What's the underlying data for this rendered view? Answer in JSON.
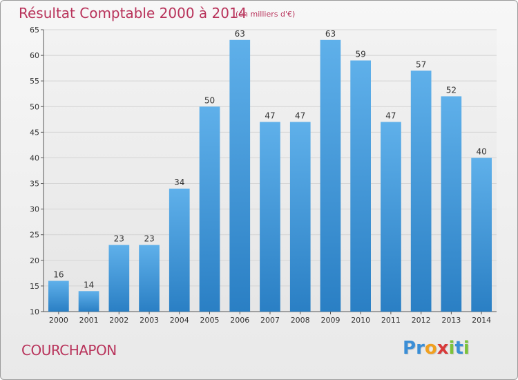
{
  "header": {
    "title": "Résultat Comptable 2000 à 2014",
    "unit_note": "(en milliers d'€)"
  },
  "footer": {
    "town": "COURCHAPON",
    "logo_letters": [
      {
        "ch": "P",
        "color": "#3a8ed6"
      },
      {
        "ch": "r",
        "color": "#3a8ed6"
      },
      {
        "ch": "o",
        "color": "#f0a020"
      },
      {
        "ch": "x",
        "color": "#d83a3a"
      },
      {
        "ch": "i",
        "color": "#7cc23a"
      },
      {
        "ch": "t",
        "color": "#3a8ed6"
      },
      {
        "ch": "i",
        "color": "#7cc23a"
      }
    ]
  },
  "colors": {
    "bar_top": "#5fb0ea",
    "bar_bottom": "#2a7fc4",
    "text": "#b8325a",
    "axis": "#555555"
  },
  "chart_data": {
    "type": "bar",
    "title": "Résultat Comptable 2000 à 2014",
    "subtitle": "(en milliers d'€)",
    "xlabel": "",
    "ylabel": "",
    "categories": [
      "2000",
      "2001",
      "2002",
      "2003",
      "2004",
      "2005",
      "2006",
      "2007",
      "2008",
      "2009",
      "2010",
      "2011",
      "2012",
      "2013",
      "2014"
    ],
    "values": [
      16,
      14,
      23,
      23,
      34,
      50,
      63,
      47,
      47,
      63,
      59,
      47,
      57,
      52,
      40
    ],
    "ylim": [
      10,
      65
    ],
    "yticks": [
      10,
      15,
      20,
      25,
      30,
      35,
      40,
      45,
      50,
      55,
      60,
      65
    ],
    "grid": true,
    "legend": "none"
  }
}
